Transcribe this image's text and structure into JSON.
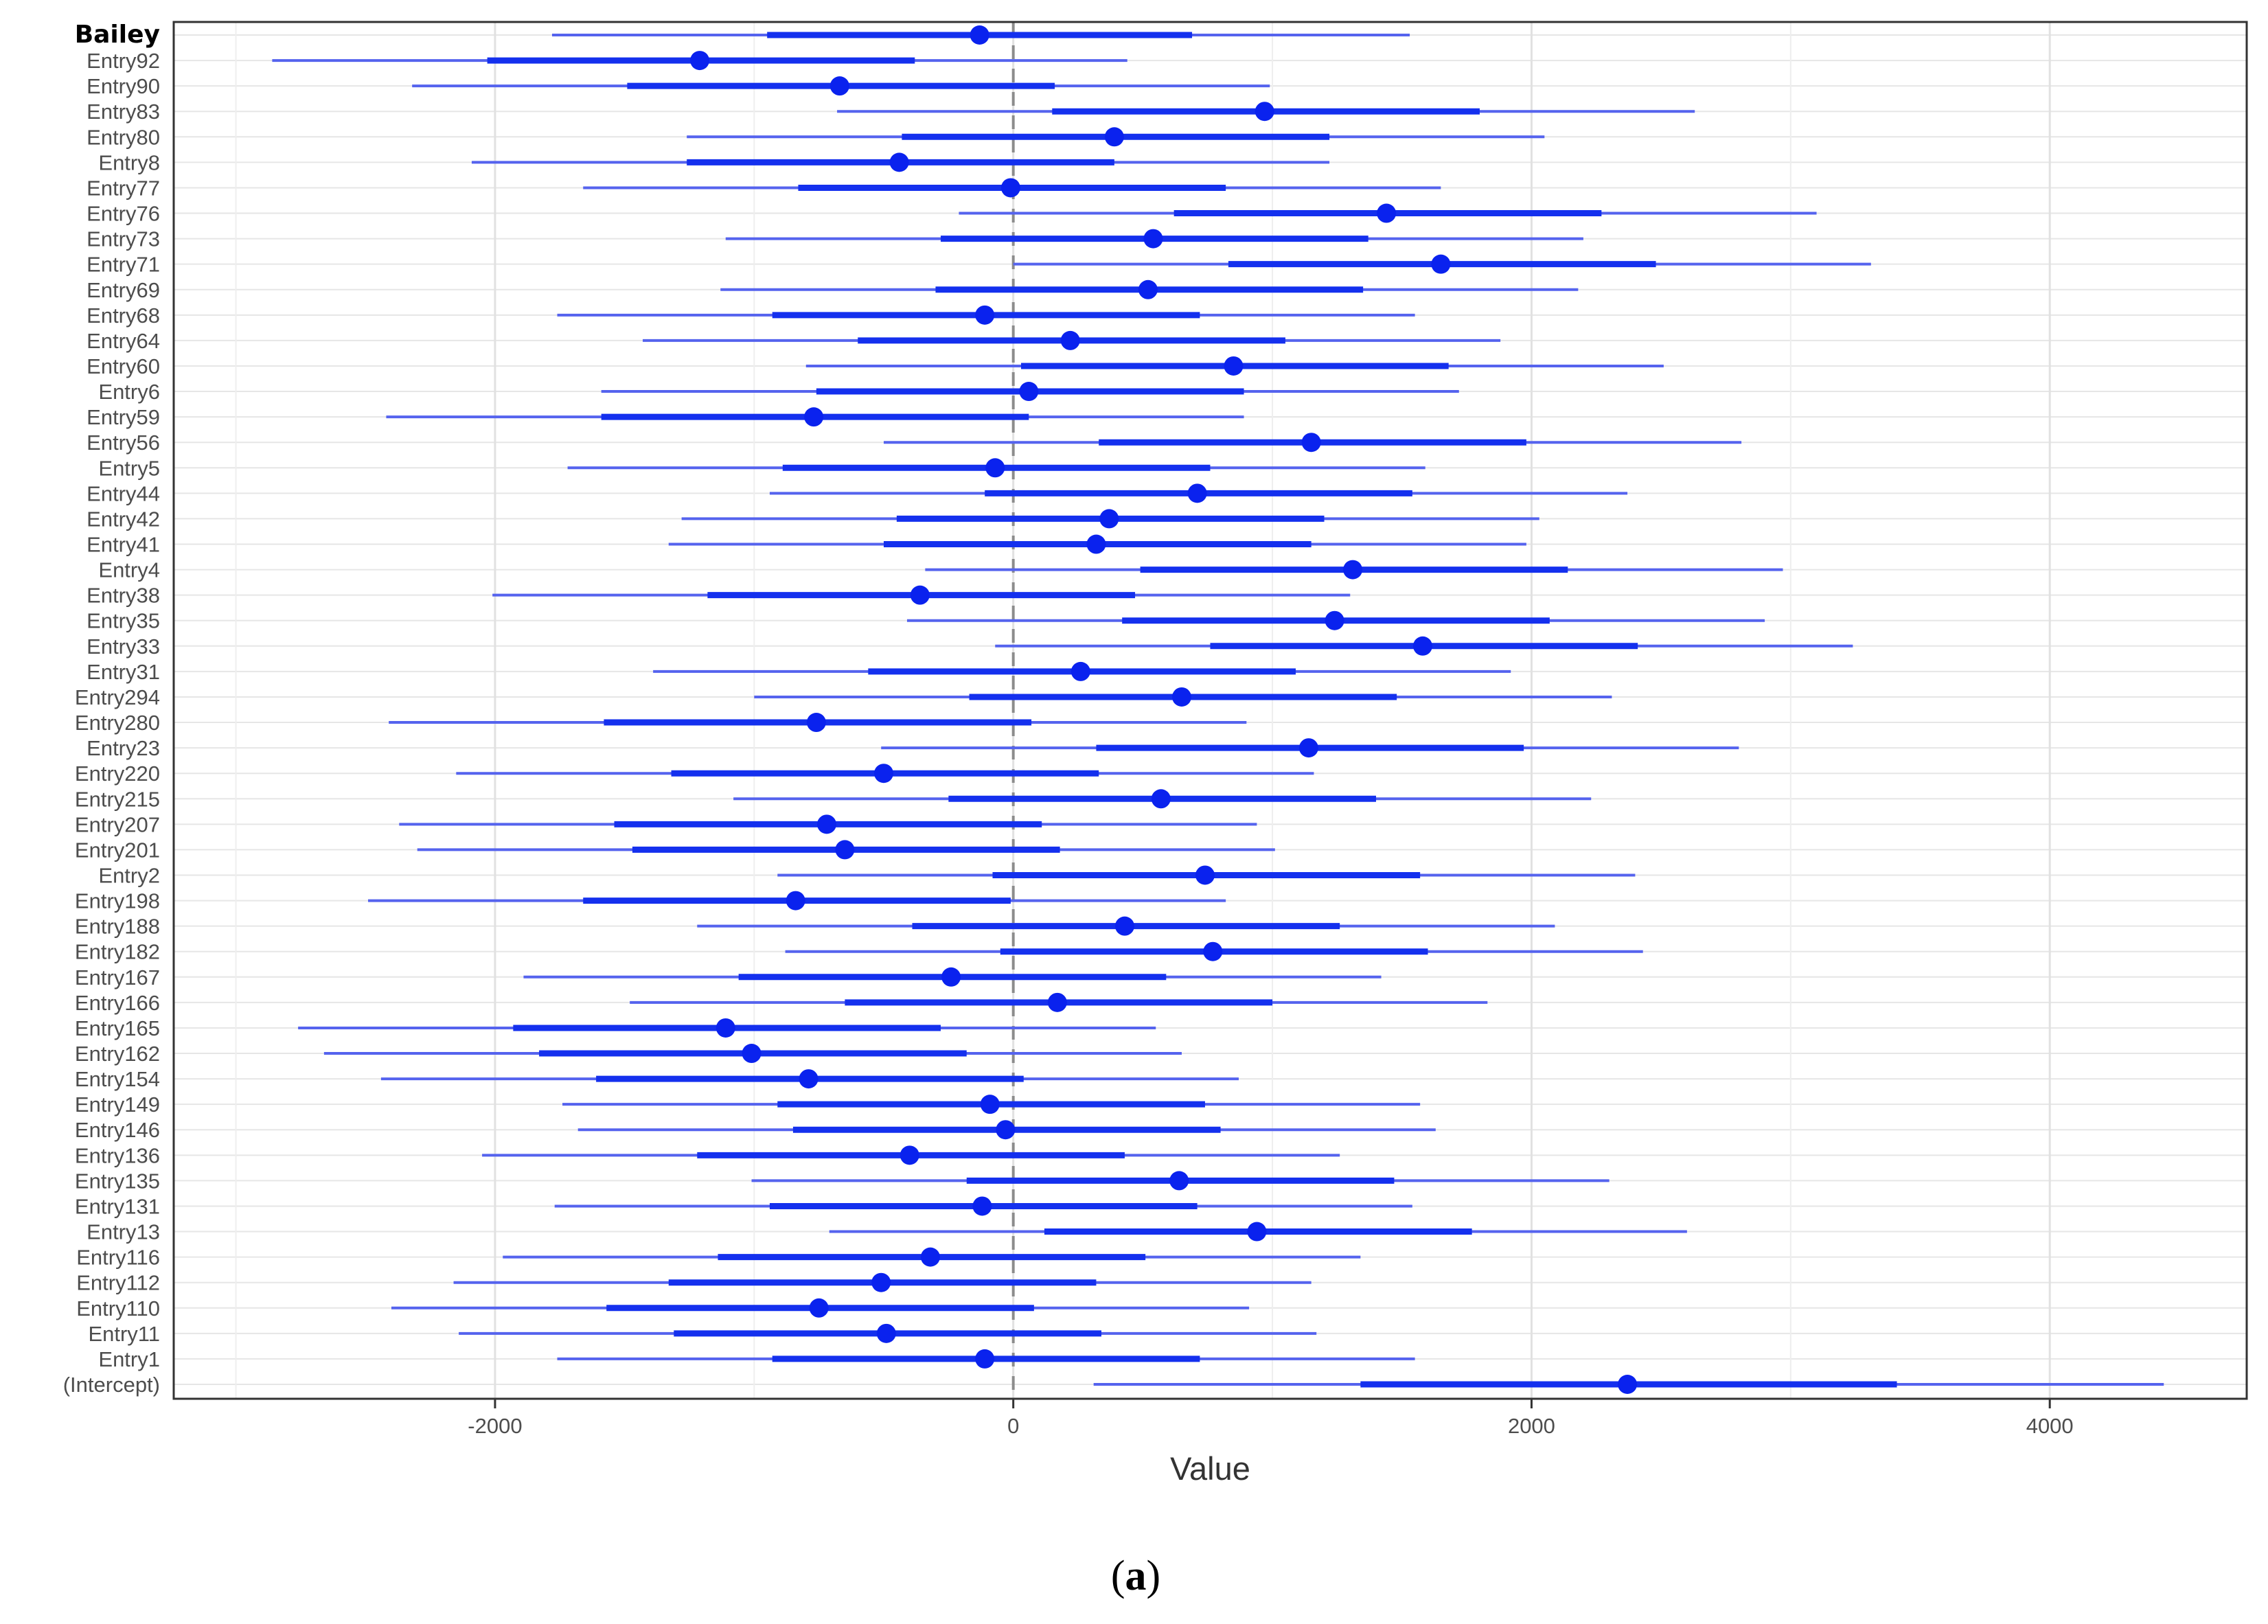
{
  "chart_data": {
    "type": "forest",
    "xlabel": "Value",
    "x_ticks": [
      -2000,
      0,
      2000,
      4000
    ],
    "x_tick_labels": [
      "-2000",
      "0",
      "2000",
      "4000"
    ],
    "xlim": [
      -3240,
      4760
    ],
    "reference_line": 0,
    "grid": true,
    "point_color": "#0a22ee",
    "inner_interval_color": "#1430ee",
    "outer_interval_color": "#5563ee",
    "rows": [
      {
        "label": "Bailey",
        "bold": true,
        "est": -130,
        "inner": [
          -950,
          690
        ],
        "outer": [
          -1780,
          1530
        ]
      },
      {
        "label": "Entry92",
        "est": -1210,
        "inner": [
          -2030,
          -380
        ],
        "outer": [
          -2860,
          440
        ]
      },
      {
        "label": "Entry90",
        "est": -670,
        "inner": [
          -1490,
          160
        ],
        "outer": [
          -2320,
          990
        ]
      },
      {
        "label": "Entry83",
        "est": 970,
        "inner": [
          150,
          1800
        ],
        "outer": [
          -680,
          2630
        ]
      },
      {
        "label": "Entry80",
        "est": 390,
        "inner": [
          -430,
          1220
        ],
        "outer": [
          -1260,
          2050
        ]
      },
      {
        "label": "Entry8",
        "est": -440,
        "inner": [
          -1260,
          390
        ],
        "outer": [
          -2090,
          1220
        ]
      },
      {
        "label": "Entry77",
        "est": -10,
        "inner": [
          -830,
          820
        ],
        "outer": [
          -1660,
          1650
        ]
      },
      {
        "label": "Entry76",
        "est": 1440,
        "inner": [
          620,
          2270
        ],
        "outer": [
          -210,
          3100
        ]
      },
      {
        "label": "Entry73",
        "est": 540,
        "inner": [
          -280,
          1370
        ],
        "outer": [
          -1110,
          2200
        ]
      },
      {
        "label": "Entry71",
        "est": 1650,
        "inner": [
          830,
          2480
        ],
        "outer": [
          0,
          3310
        ]
      },
      {
        "label": "Entry69",
        "est": 520,
        "inner": [
          -300,
          1350
        ],
        "outer": [
          -1130,
          2180
        ]
      },
      {
        "label": "Entry68",
        "est": -110,
        "inner": [
          -930,
          720
        ],
        "outer": [
          -1760,
          1550
        ]
      },
      {
        "label": "Entry64",
        "est": 220,
        "inner": [
          -600,
          1050
        ],
        "outer": [
          -1430,
          1880
        ]
      },
      {
        "label": "Entry60",
        "est": 850,
        "inner": [
          30,
          1680
        ],
        "outer": [
          -800,
          2510
        ]
      },
      {
        "label": "Entry6",
        "est": 60,
        "inner": [
          -760,
          890
        ],
        "outer": [
          -1590,
          1720
        ]
      },
      {
        "label": "Entry59",
        "est": -770,
        "inner": [
          -1590,
          60
        ],
        "outer": [
          -2420,
          890
        ]
      },
      {
        "label": "Entry56",
        "est": 1150,
        "inner": [
          330,
          1980
        ],
        "outer": [
          -500,
          2810
        ]
      },
      {
        "label": "Entry5",
        "est": -70,
        "inner": [
          -890,
          760
        ],
        "outer": [
          -1720,
          1590
        ]
      },
      {
        "label": "Entry44",
        "est": 710,
        "inner": [
          -110,
          1540
        ],
        "outer": [
          -940,
          2370
        ]
      },
      {
        "label": "Entry42",
        "est": 370,
        "inner": [
          -450,
          1200
        ],
        "outer": [
          -1280,
          2030
        ]
      },
      {
        "label": "Entry41",
        "est": 320,
        "inner": [
          -500,
          1150
        ],
        "outer": [
          -1330,
          1980
        ]
      },
      {
        "label": "Entry4",
        "est": 1310,
        "inner": [
          490,
          2140
        ],
        "outer": [
          -340,
          2970
        ]
      },
      {
        "label": "Entry38",
        "est": -360,
        "inner": [
          -1180,
          470
        ],
        "outer": [
          -2010,
          1300
        ]
      },
      {
        "label": "Entry35",
        "est": 1240,
        "inner": [
          420,
          2070
        ],
        "outer": [
          -410,
          2900
        ]
      },
      {
        "label": "Entry33",
        "est": 1580,
        "inner": [
          760,
          2410
        ],
        "outer": [
          -70,
          3240
        ]
      },
      {
        "label": "Entry31",
        "est": 260,
        "inner": [
          -560,
          1090
        ],
        "outer": [
          -1390,
          1920
        ]
      },
      {
        "label": "Entry294",
        "est": 650,
        "inner": [
          -170,
          1480
        ],
        "outer": [
          -1000,
          2310
        ]
      },
      {
        "label": "Entry280",
        "est": -760,
        "inner": [
          -1580,
          70
        ],
        "outer": [
          -2410,
          900
        ]
      },
      {
        "label": "Entry23",
        "est": 1140,
        "inner": [
          320,
          1970
        ],
        "outer": [
          -510,
          2800
        ]
      },
      {
        "label": "Entry220",
        "est": -500,
        "inner": [
          -1320,
          330
        ],
        "outer": [
          -2150,
          1160
        ]
      },
      {
        "label": "Entry215",
        "est": 570,
        "inner": [
          -250,
          1400
        ],
        "outer": [
          -1080,
          2230
        ]
      },
      {
        "label": "Entry207",
        "est": -720,
        "inner": [
          -1540,
          110
        ],
        "outer": [
          -2370,
          940
        ]
      },
      {
        "label": "Entry201",
        "est": -650,
        "inner": [
          -1470,
          180
        ],
        "outer": [
          -2300,
          1010
        ]
      },
      {
        "label": "Entry2",
        "est": 740,
        "inner": [
          -80,
          1570
        ],
        "outer": [
          -910,
          2400
        ]
      },
      {
        "label": "Entry198",
        "est": -840,
        "inner": [
          -1660,
          -10
        ],
        "outer": [
          -2490,
          820
        ]
      },
      {
        "label": "Entry188",
        "est": 430,
        "inner": [
          -390,
          1260
        ],
        "outer": [
          -1220,
          2090
        ]
      },
      {
        "label": "Entry182",
        "est": 770,
        "inner": [
          -50,
          1600
        ],
        "outer": [
          -880,
          2430
        ]
      },
      {
        "label": "Entry167",
        "est": -240,
        "inner": [
          -1060,
          590
        ],
        "outer": [
          -1890,
          1420
        ]
      },
      {
        "label": "Entry166",
        "est": 170,
        "inner": [
          -650,
          1000
        ],
        "outer": [
          -1480,
          1830
        ]
      },
      {
        "label": "Entry165",
        "est": -1110,
        "inner": [
          -1930,
          -280
        ],
        "outer": [
          -2760,
          550
        ]
      },
      {
        "label": "Entry162",
        "est": -1010,
        "inner": [
          -1830,
          -180
        ],
        "outer": [
          -2660,
          650
        ]
      },
      {
        "label": "Entry154",
        "est": -790,
        "inner": [
          -1610,
          40
        ],
        "outer": [
          -2440,
          870
        ]
      },
      {
        "label": "Entry149",
        "est": -90,
        "inner": [
          -910,
          740
        ],
        "outer": [
          -1740,
          1570
        ]
      },
      {
        "label": "Entry146",
        "est": -30,
        "inner": [
          -850,
          800
        ],
        "outer": [
          -1680,
          1630
        ]
      },
      {
        "label": "Entry136",
        "est": -400,
        "inner": [
          -1220,
          430
        ],
        "outer": [
          -2050,
          1260
        ]
      },
      {
        "label": "Entry135",
        "est": 640,
        "inner": [
          -180,
          1470
        ],
        "outer": [
          -1010,
          2300
        ]
      },
      {
        "label": "Entry131",
        "est": -120,
        "inner": [
          -940,
          710
        ],
        "outer": [
          -1770,
          1540
        ]
      },
      {
        "label": "Entry13",
        "est": 940,
        "inner": [
          120,
          1770
        ],
        "outer": [
          -710,
          2600
        ]
      },
      {
        "label": "Entry116",
        "est": -320,
        "inner": [
          -1140,
          510
        ],
        "outer": [
          -1970,
          1340
        ]
      },
      {
        "label": "Entry112",
        "est": -510,
        "inner": [
          -1330,
          320
        ],
        "outer": [
          -2160,
          1150
        ]
      },
      {
        "label": "Entry110",
        "est": -750,
        "inner": [
          -1570,
          80
        ],
        "outer": [
          -2400,
          910
        ]
      },
      {
        "label": "Entry11",
        "est": -490,
        "inner": [
          -1310,
          340
        ],
        "outer": [
          -2140,
          1170
        ]
      },
      {
        "label": "Entry1",
        "est": -110,
        "inner": [
          -930,
          720
        ],
        "outer": [
          -1760,
          1550
        ]
      },
      {
        "label": "(Intercept)",
        "est": 2370,
        "inner": [
          1340,
          3410
        ],
        "outer": [
          310,
          4440
        ]
      }
    ]
  },
  "caption": {
    "open": "(",
    "letter": "a",
    "close": ")"
  }
}
